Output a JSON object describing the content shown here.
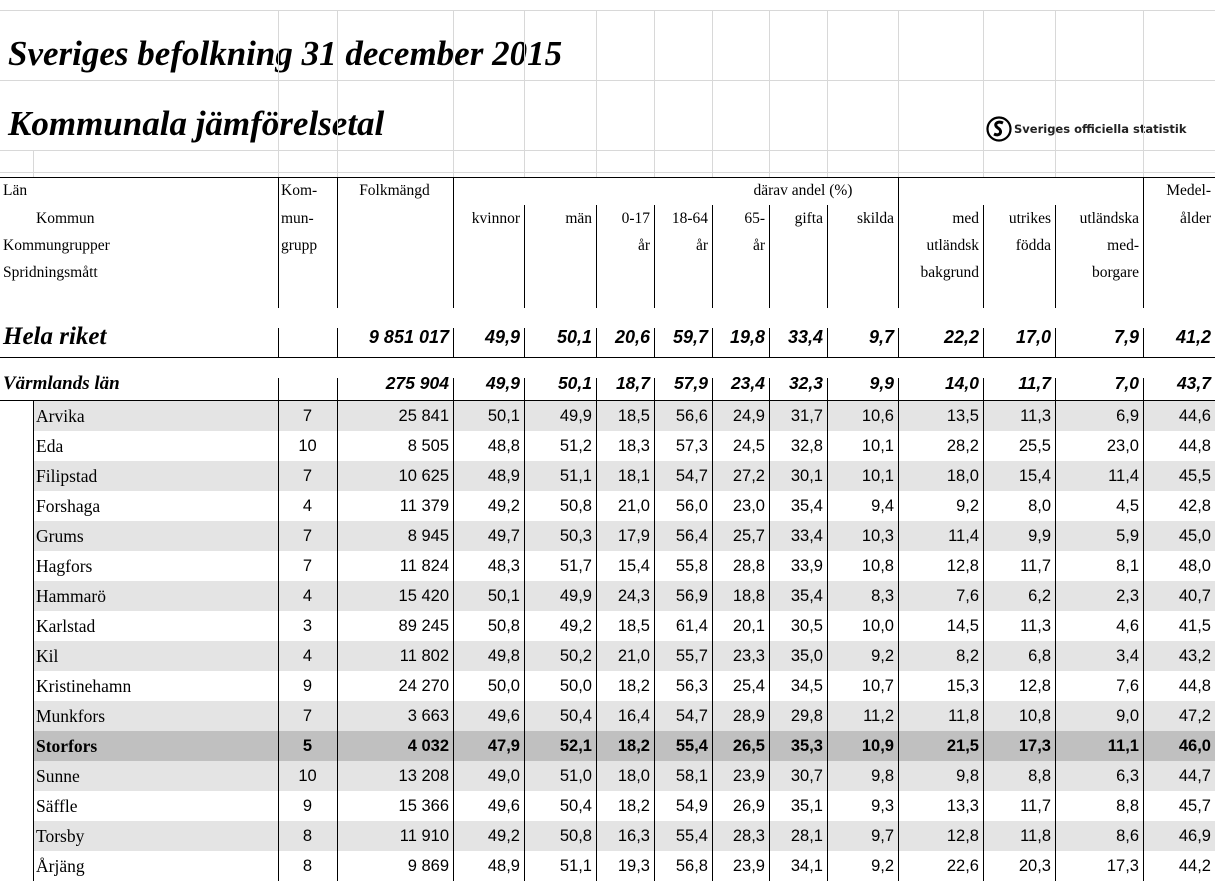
{
  "title": "Sveriges befolkning 31 december 2015",
  "subtitle": "Kommunala jämförelsetal",
  "logo": "Sveriges officiella statistik",
  "header": {
    "spanning": "därav andel (%)",
    "rows": [
      [
        {
          "col": 0,
          "text": "Län"
        },
        {
          "col": 1,
          "text": "Kom-"
        },
        {
          "col": 2,
          "text": "Folkmängd"
        },
        {
          "col": 13,
          "text": "Medel-"
        }
      ],
      [
        {
          "col": 0,
          "text": "Kommun"
        },
        {
          "col": 1,
          "text": "mun-"
        },
        {
          "col": 3,
          "text": "kvinnor"
        },
        {
          "col": 4,
          "text": "män"
        },
        {
          "col": 5,
          "text": "0-17"
        },
        {
          "col": 6,
          "text": "18-64"
        },
        {
          "col": 7,
          "text": "65-"
        },
        {
          "col": 8,
          "text": "gifta"
        },
        {
          "col": 9,
          "text": "skilda"
        },
        {
          "col": 10,
          "text": "med"
        },
        {
          "col": 11,
          "text": "utrikes"
        },
        {
          "col": 12,
          "text": "utländska"
        },
        {
          "col": 13,
          "text": "ålder"
        }
      ],
      [
        {
          "col": 0,
          "text": "Kommungrupper"
        },
        {
          "col": 1,
          "text": "grupp"
        },
        {
          "col": 5,
          "text": "år"
        },
        {
          "col": 6,
          "text": "år"
        },
        {
          "col": 7,
          "text": "år"
        },
        {
          "col": 10,
          "text": "utländsk"
        },
        {
          "col": 11,
          "text": "födda"
        },
        {
          "col": 12,
          "text": "med-"
        }
      ],
      [
        {
          "col": 0,
          "text": "Spridningsmått"
        },
        {
          "col": 10,
          "text": "bakgrund"
        },
        {
          "col": 12,
          "text": "borgare"
        }
      ]
    ]
  },
  "summary": [
    {
      "name": "Hela riket",
      "values": [
        "9 851 017",
        "49,9",
        "50,1",
        "20,6",
        "59,7",
        "19,8",
        "33,4",
        "9,7",
        "22,2",
        "17,0",
        "7,9",
        "41,2"
      ]
    },
    {
      "name": "Värmlands län",
      "values": [
        "275 904",
        "49,9",
        "50,1",
        "18,7",
        "57,9",
        "23,4",
        "32,3",
        "9,9",
        "14,0",
        "11,7",
        "7,0",
        "43,7"
      ]
    }
  ],
  "rows": [
    {
      "name": "Arvika",
      "group": "7",
      "values": [
        "25 841",
        "50,1",
        "49,9",
        "18,5",
        "56,6",
        "24,9",
        "31,7",
        "10,6",
        "13,5",
        "11,3",
        "6,9",
        "44,6"
      ]
    },
    {
      "name": "Eda",
      "group": "10",
      "values": [
        "8 505",
        "48,8",
        "51,2",
        "18,3",
        "57,3",
        "24,5",
        "32,8",
        "10,1",
        "28,2",
        "25,5",
        "23,0",
        "44,8"
      ]
    },
    {
      "name": "Filipstad",
      "group": "7",
      "values": [
        "10 625",
        "48,9",
        "51,1",
        "18,1",
        "54,7",
        "27,2",
        "30,1",
        "10,1",
        "18,0",
        "15,4",
        "11,4",
        "45,5"
      ]
    },
    {
      "name": "Forshaga",
      "group": "4",
      "values": [
        "11 379",
        "49,2",
        "50,8",
        "21,0",
        "56,0",
        "23,0",
        "35,4",
        "9,4",
        "9,2",
        "8,0",
        "4,5",
        "42,8"
      ]
    },
    {
      "name": "Grums",
      "group": "7",
      "values": [
        "8 945",
        "49,7",
        "50,3",
        "17,9",
        "56,4",
        "25,7",
        "33,4",
        "10,3",
        "11,4",
        "9,9",
        "5,9",
        "45,0"
      ]
    },
    {
      "name": "Hagfors",
      "group": "7",
      "values": [
        "11 824",
        "48,3",
        "51,7",
        "15,4",
        "55,8",
        "28,8",
        "33,9",
        "10,8",
        "12,8",
        "11,7",
        "8,1",
        "48,0"
      ]
    },
    {
      "name": "Hammarö",
      "group": "4",
      "values": [
        "15 420",
        "50,1",
        "49,9",
        "24,3",
        "56,9",
        "18,8",
        "35,4",
        "8,3",
        "7,6",
        "6,2",
        "2,3",
        "40,7"
      ]
    },
    {
      "name": "Karlstad",
      "group": "3",
      "values": [
        "89 245",
        "50,8",
        "49,2",
        "18,5",
        "61,4",
        "20,1",
        "30,5",
        "10,0",
        "14,5",
        "11,3",
        "4,6",
        "41,5"
      ]
    },
    {
      "name": "Kil",
      "group": "4",
      "values": [
        "11 802",
        "49,8",
        "50,2",
        "21,0",
        "55,7",
        "23,3",
        "35,0",
        "9,2",
        "8,2",
        "6,8",
        "3,4",
        "43,2"
      ]
    },
    {
      "name": "Kristinehamn",
      "group": "9",
      "values": [
        "24 270",
        "50,0",
        "50,0",
        "18,2",
        "56,3",
        "25,4",
        "34,5",
        "10,7",
        "15,3",
        "12,8",
        "7,6",
        "44,8"
      ]
    },
    {
      "name": "Munkfors",
      "group": "7",
      "values": [
        "3 663",
        "49,6",
        "50,4",
        "16,4",
        "54,7",
        "28,9",
        "29,8",
        "11,2",
        "11,8",
        "10,8",
        "9,0",
        "47,2"
      ]
    },
    {
      "name": "Storfors",
      "group": "5",
      "highlight": true,
      "values": [
        "4 032",
        "47,9",
        "52,1",
        "18,2",
        "55,4",
        "26,5",
        "35,3",
        "10,9",
        "21,5",
        "17,3",
        "11,1",
        "46,0"
      ]
    },
    {
      "name": "Sunne",
      "group": "10",
      "values": [
        "13 208",
        "49,0",
        "51,0",
        "18,0",
        "58,1",
        "23,9",
        "30,7",
        "9,8",
        "9,8",
        "8,8",
        "6,3",
        "44,7"
      ]
    },
    {
      "name": "Säffle",
      "group": "9",
      "values": [
        "15 366",
        "49,6",
        "50,4",
        "18,2",
        "54,9",
        "26,9",
        "35,1",
        "9,3",
        "13,3",
        "11,7",
        "8,8",
        "45,7"
      ]
    },
    {
      "name": "Torsby",
      "group": "8",
      "values": [
        "11 910",
        "49,2",
        "50,8",
        "16,3",
        "55,4",
        "28,3",
        "28,1",
        "9,7",
        "12,8",
        "11,8",
        "8,6",
        "46,9"
      ]
    },
    {
      "name": "Årjäng",
      "group": "8",
      "values": [
        "9 869",
        "48,9",
        "51,1",
        "19,3",
        "56,8",
        "23,9",
        "34,1",
        "9,2",
        "22,6",
        "20,3",
        "17,3",
        "44,2"
      ]
    }
  ]
}
